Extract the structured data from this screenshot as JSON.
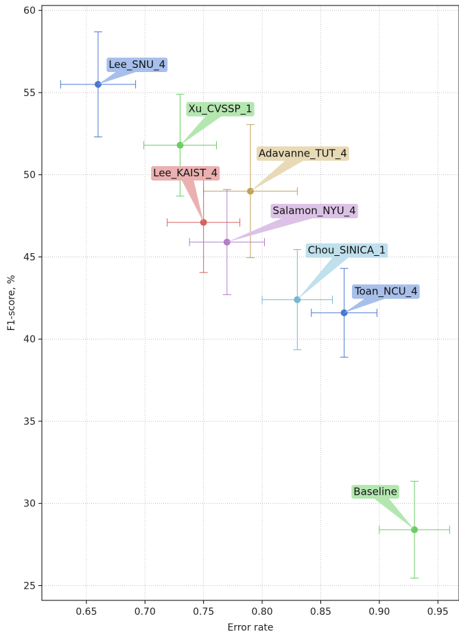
{
  "chart_data": {
    "type": "scatter",
    "title": "",
    "xlabel": "Error rate",
    "ylabel": "F1-score, %",
    "xlim": [
      0.612,
      0.968
    ],
    "ylim": [
      24.1,
      60.3
    ],
    "xticks": [
      0.65,
      0.7,
      0.75,
      0.8,
      0.85,
      0.9,
      0.95
    ],
    "xtick_labels": [
      "0.65",
      "0.70",
      "0.75",
      "0.80",
      "0.85",
      "0.90",
      "0.95"
    ],
    "yticks": [
      25,
      30,
      35,
      40,
      45,
      50,
      55,
      60
    ],
    "ytick_labels": [
      "25",
      "30",
      "35",
      "40",
      "45",
      "50",
      "55",
      "60"
    ],
    "grid": true,
    "legend": "none",
    "points": [
      {
        "label": "Lee_SNU_4",
        "x": 0.66,
        "y": 55.5,
        "xerr": 0.032,
        "yerr": 3.2,
        "color": "#4878d0",
        "label_color": "#a7bfea",
        "label_pos": [
          0.669,
          56.5
        ]
      },
      {
        "label": "Xu_CVSSP_1",
        "x": 0.73,
        "y": 51.8,
        "xerr": 0.031,
        "yerr": 3.1,
        "color": "#6acc64",
        "label_color": "#b4e6b0",
        "label_pos": [
          0.737,
          53.8
        ]
      },
      {
        "label": "Adavanne_TUT_4",
        "x": 0.79,
        "y": 49.0,
        "xerr": 0.04,
        "yerr": 4.05,
        "color": "#c1a25a",
        "label_color": "#e7dab5",
        "label_pos": [
          0.797,
          51.1
        ]
      },
      {
        "label": "Lee_KAIST_4",
        "x": 0.75,
        "y": 47.1,
        "xerr": 0.031,
        "yerr": 3.05,
        "color": "#d65f5f",
        "label_color": "#ebb0b0",
        "label_pos": [
          0.707,
          49.9
        ]
      },
      {
        "label": "Salamon_NYU_4",
        "x": 0.77,
        "y": 45.9,
        "xerr": 0.032,
        "yerr": 3.2,
        "color": "#b47cc7",
        "label_color": "#dcc2e6",
        "label_pos": [
          0.809,
          47.6
        ]
      },
      {
        "label": "Chou_SINICA_1",
        "x": 0.83,
        "y": 42.4,
        "xerr": 0.03,
        "yerr": 3.05,
        "color": "#72b8d0",
        "label_color": "#bfe0ec",
        "label_pos": [
          0.839,
          45.2
        ]
      },
      {
        "label": "Toan_NCU_4",
        "x": 0.87,
        "y": 41.6,
        "xerr": 0.028,
        "yerr": 2.7,
        "color": "#4878d0",
        "label_color": "#a7bfea",
        "label_pos": [
          0.879,
          42.7
        ]
      },
      {
        "label": "Baseline",
        "x": 0.93,
        "y": 28.4,
        "xerr": 0.03,
        "yerr": 2.95,
        "color": "#6acc64",
        "label_color": "#b4e6b0",
        "label_pos": [
          0.878,
          30.5
        ]
      }
    ]
  }
}
